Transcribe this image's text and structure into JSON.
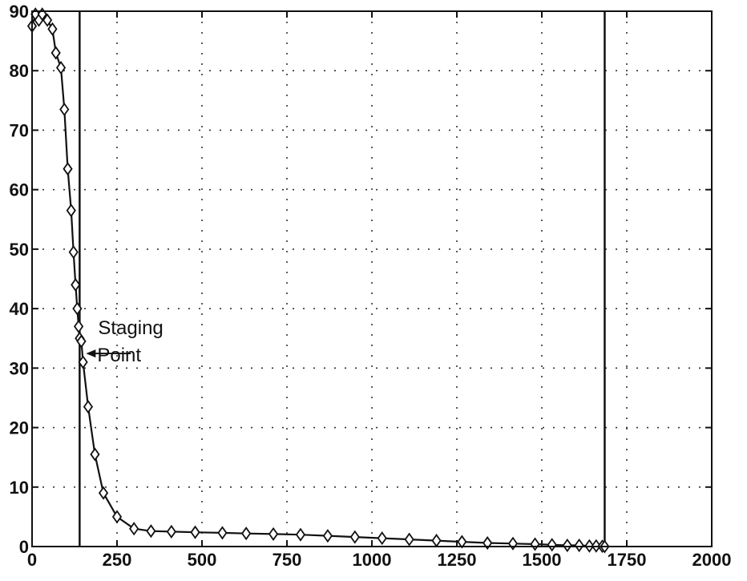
{
  "chart_data": {
    "type": "line",
    "title": "",
    "xlabel": "",
    "ylabel": "",
    "xlim": [
      0,
      2000
    ],
    "ylim": [
      0,
      90
    ],
    "x_ticks": [
      0,
      250,
      500,
      750,
      1000,
      1250,
      1500,
      1750,
      2000
    ],
    "y_ticks": [
      0,
      10,
      20,
      30,
      40,
      50,
      60,
      70,
      80,
      90
    ],
    "grid": true,
    "grid_style": "dotted",
    "marker": "diamond",
    "colors": {
      "line": "#111111",
      "grid": "#333333",
      "axes": "#111111",
      "background": "#ffffff"
    },
    "vertical_lines": [
      140,
      1685
    ],
    "annotation": {
      "lines": [
        "Staging",
        "Point"
      ],
      "x": 140,
      "y": 33
    },
    "series": [
      {
        "x": [
          0,
          10,
          20,
          30,
          45,
          60,
          70,
          85,
          95,
          105,
          115,
          122,
          128,
          133,
          137,
          140,
          145,
          150,
          165,
          185,
          210,
          250,
          300,
          350,
          410,
          480,
          560,
          630,
          710,
          790,
          870,
          950,
          1030,
          1110,
          1190,
          1265,
          1340,
          1415,
          1480,
          1530,
          1575,
          1610,
          1640,
          1660,
          1678,
          1685
        ],
        "y": [
          87.5,
          89.5,
          88.5,
          89.5,
          88.5,
          87,
          83,
          80.5,
          73.5,
          63.5,
          56.5,
          49.5,
          44,
          40,
          37,
          35,
          34.5,
          31,
          23.5,
          15.5,
          9,
          5,
          3,
          2.6,
          2.5,
          2.4,
          2.3,
          2.2,
          2.1,
          2.0,
          1.8,
          1.6,
          1.4,
          1.2,
          1.0,
          0.8,
          0.6,
          0.5,
          0.4,
          0.3,
          0.2,
          0.2,
          0.1,
          0.1,
          0.05,
          0
        ]
      }
    ]
  }
}
